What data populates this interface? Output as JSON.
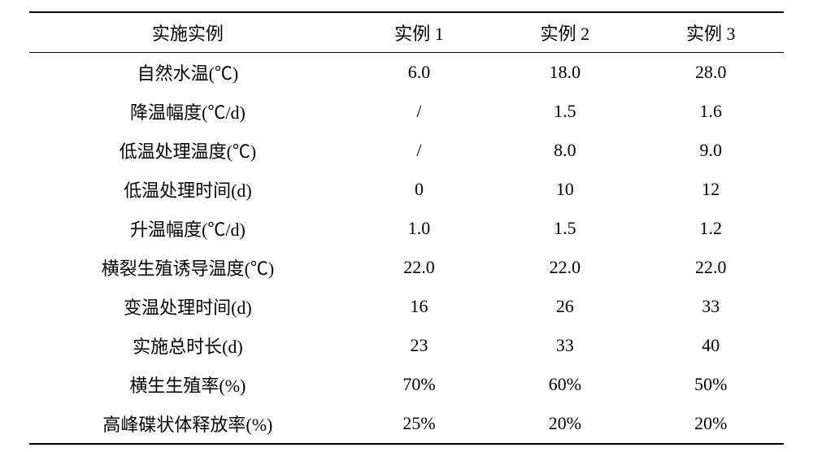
{
  "table": {
    "header": {
      "param": "实施实例",
      "cols": [
        "实例 1",
        "实例 2",
        "实例 3"
      ]
    },
    "rows": [
      {
        "param": "自然水温(℃)",
        "v": [
          "6.0",
          "18.0",
          "28.0"
        ]
      },
      {
        "param": "降温幅度(℃/d)",
        "v": [
          "/",
          "1.5",
          "1.6"
        ]
      },
      {
        "param": "低温处理温度(℃)",
        "v": [
          "/",
          "8.0",
          "9.0"
        ]
      },
      {
        "param": "低温处理时间(d)",
        "v": [
          "0",
          "10",
          "12"
        ]
      },
      {
        "param": "升温幅度(℃/d)",
        "v": [
          "1.0",
          "1.5",
          "1.2"
        ]
      },
      {
        "param": "横裂生殖诱导温度(℃)",
        "v": [
          "22.0",
          "22.0",
          "22.0"
        ]
      },
      {
        "param": "变温处理时间(d)",
        "v": [
          "16",
          "26",
          "33"
        ]
      },
      {
        "param": "实施总时长(d)",
        "v": [
          "23",
          "33",
          "40"
        ]
      },
      {
        "param": "横生生殖率(%)",
        "v": [
          "70%",
          "60%",
          "50%"
        ]
      },
      {
        "param": "高峰碟状体释放率(%)",
        "v": [
          "25%",
          "20%",
          "20%"
        ]
      }
    ]
  }
}
